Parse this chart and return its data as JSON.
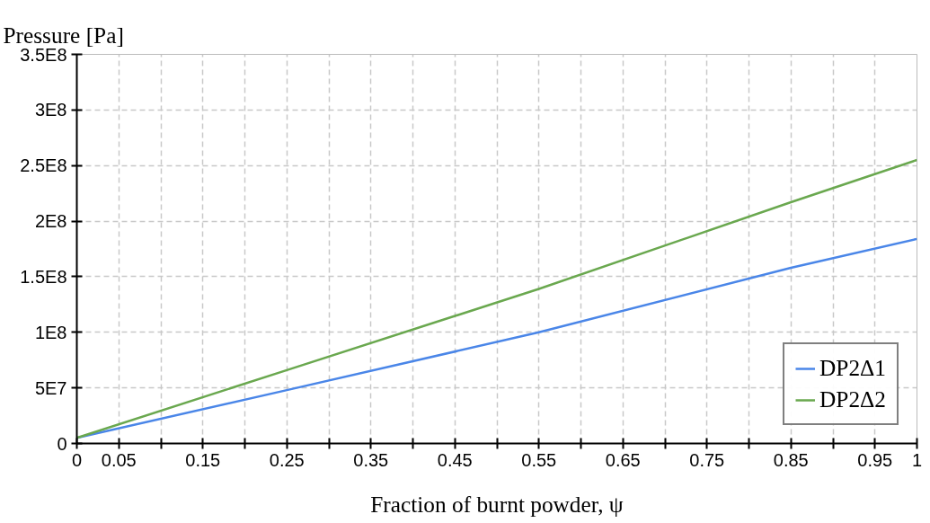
{
  "chart_data": {
    "type": "line",
    "ylabel": "Pressure [Pa]",
    "xlabel": "Fraction of burnt powder, ψ",
    "xlim": [
      0,
      1
    ],
    "ylim": [
      0,
      350000000
    ],
    "xticks": [
      0,
      0.05,
      {
        "value": 0.1,
        "label": null
      },
      0.15,
      {
        "value": 0.2,
        "label": null
      },
      0.25,
      {
        "value": 0.3,
        "label": null
      },
      0.35,
      {
        "value": 0.4,
        "label": null
      },
      0.45,
      {
        "value": 0.5,
        "label": null
      },
      0.55,
      {
        "value": 0.6,
        "label": null
      },
      0.65,
      {
        "value": 0.7,
        "label": null
      },
      0.75,
      {
        "value": 0.8,
        "label": null
      },
      0.85,
      {
        "value": 0.9,
        "label": null
      },
      0.95,
      1
    ],
    "yticks": [
      0,
      {
        "value": 50000000,
        "label": "5E7"
      },
      {
        "value": 100000000,
        "label": "1E8"
      },
      {
        "value": 150000000,
        "label": "1.5E8"
      },
      {
        "value": 200000000,
        "label": "2E8"
      },
      {
        "value": 250000000,
        "label": "2.5E8"
      },
      {
        "value": 300000000,
        "label": "3E8"
      },
      {
        "value": 350000000,
        "label": "3.5E8"
      }
    ],
    "x": [
      0,
      0.25,
      0.55,
      0.85,
      1
    ],
    "series": [
      {
        "name": "DP2Δ1",
        "color": "#4a86e8",
        "values": [
          5000000,
          48000000,
          100000000,
          158000000,
          184000000
        ]
      },
      {
        "name": "DP2Δ2",
        "color": "#6aa84f",
        "values": [
          5000000,
          66000000,
          139000000,
          217000000,
          255000000
        ]
      }
    ],
    "grid": true,
    "legend": "bottom right",
    "line_style": "solid",
    "marker": "none"
  }
}
